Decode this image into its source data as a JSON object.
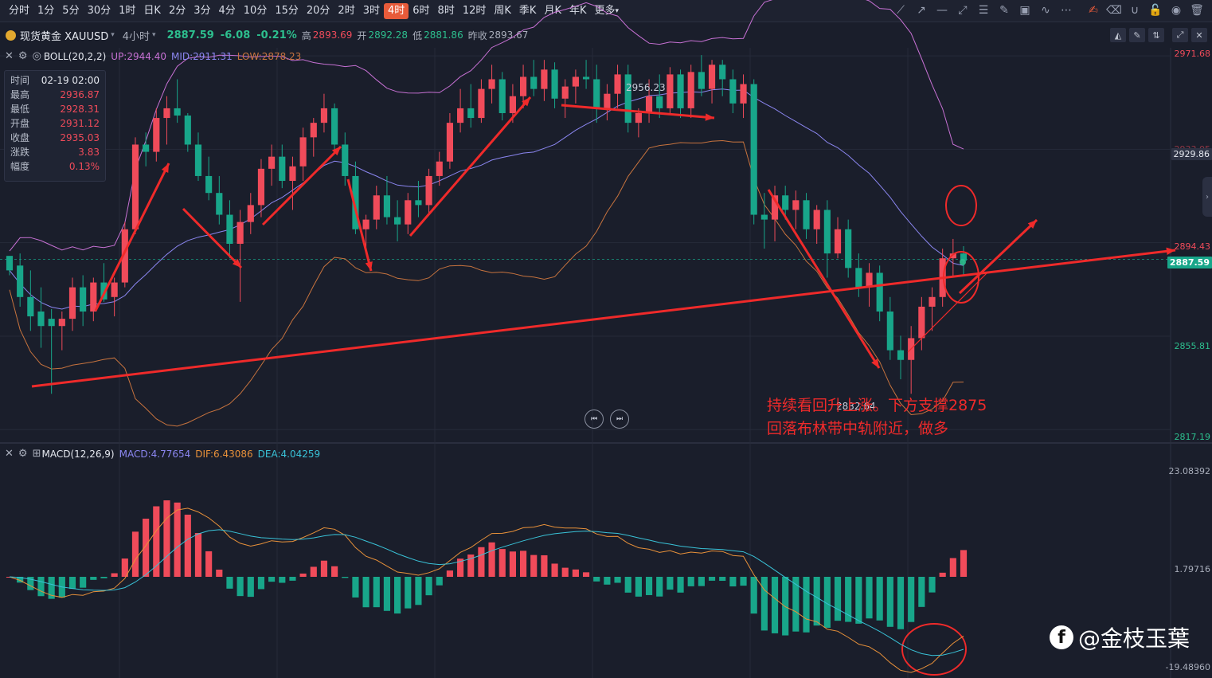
{
  "timeframes": [
    "分时",
    "1分",
    "5分",
    "30分",
    "1时",
    "日K",
    "2分",
    "3分",
    "4分",
    "10分",
    "15分",
    "20分",
    "2时",
    "3时",
    "4时",
    "6时",
    "8时",
    "12时",
    "周K",
    "季K",
    "月K",
    "年K",
    "更多"
  ],
  "active_timeframe": "4时",
  "more_caret": "▾",
  "tools": [
    {
      "name": "line-tool-icon",
      "glyph": "⟋"
    },
    {
      "name": "ray-tool-icon",
      "glyph": "↗"
    },
    {
      "name": "hline-tool-icon",
      "glyph": "—"
    },
    {
      "name": "segment-tool-icon",
      "glyph": "⤢"
    },
    {
      "name": "fib-tool-icon",
      "glyph": "☰"
    },
    {
      "name": "pen-tool-icon",
      "glyph": "✎"
    },
    {
      "name": "image-tool-icon",
      "glyph": "▣"
    },
    {
      "name": "wave-tool-icon",
      "glyph": "∿"
    },
    {
      "name": "more-tools-icon",
      "glyph": "⋯"
    },
    {
      "name": "edit-tool-icon",
      "glyph": "✍",
      "highlight": true
    },
    {
      "name": "eraser-icon",
      "glyph": "⌫"
    },
    {
      "name": "magnet-icon",
      "glyph": "∪"
    },
    {
      "name": "lock-icon",
      "glyph": "🔓"
    },
    {
      "name": "eye-icon",
      "glyph": "◉"
    },
    {
      "name": "trash-icon",
      "glyph": "🗑"
    }
  ],
  "symbol": {
    "name": "现货黄金 XAUUSD",
    "caret": "▾",
    "period": "4小时",
    "price": "2887.59",
    "change": "-6.08",
    "change_pct": "-0.21%",
    "high_label": "高",
    "high": "2893.69",
    "open_label": "开",
    "open": "2892.28",
    "low_label": "低",
    "low": "2881.86",
    "prev_label": "昨收",
    "prev": "2893.67"
  },
  "header_icons": [
    "chart-style-icon",
    "pencil-icon",
    "compare-icon",
    "fullscreen-icon",
    "close-icon"
  ],
  "boll_legend": {
    "name": "BOLL(20,2,2)",
    "up": "UP:2944.40",
    "mid": "MID:2911.31",
    "low": "LOW:2878.23"
  },
  "macd_legend": {
    "name": "MACD(12,26,9)",
    "macd": "MACD:4.77654",
    "dif": "DIF:6.43086",
    "dea": "DEA:4.04259"
  },
  "tooltip": [
    {
      "k": "时间",
      "v": "02-19 02:00",
      "white": true
    },
    {
      "k": "最高",
      "v": "2936.87"
    },
    {
      "k": "最低",
      "v": "2928.31"
    },
    {
      "k": "开盘",
      "v": "2931.12"
    },
    {
      "k": "收盘",
      "v": "2935.03"
    },
    {
      "k": "涨跌",
      "v": "3.83"
    },
    {
      "k": "幅度",
      "v": "0.13%"
    }
  ],
  "price_axis": {
    "labels": [
      {
        "v": "2971.68",
        "color": "#f04b5a"
      },
      {
        "v": "2894.43",
        "color": "#f04b5a"
      },
      {
        "v": "2855.81",
        "color": "#2dbf8e"
      },
      {
        "v": "2817.19",
        "color": "#2dbf8e"
      }
    ],
    "crosshair_tag": "2929.86",
    "last_price_tag": "2887.59",
    "partial_label": "2933.05"
  },
  "macd_axis": {
    "labels": [
      "23.08392",
      "1.79716",
      "-19.48960"
    ]
  },
  "peak_label": "2956.23",
  "trough_label": "2832.64",
  "annotation": {
    "line1": "持续看回升上涨。下方支撑2875",
    "line2": "回落布林带中轨附近，做多"
  },
  "brand": {
    "logo": "f",
    "text": "@金枝玉葉"
  },
  "nav_buttons": [
    "⏮",
    "⏭"
  ],
  "colors": {
    "up": "#f04b5a",
    "down": "#18a68a",
    "boll_up": "#c771d4",
    "boll_mid": "#8b86f0",
    "boll_low": "#c7733e",
    "dif": "#e8913a",
    "dea": "#39c2d7",
    "arrow": "#ef2a2a"
  },
  "chart_data": {
    "type": "candlestick",
    "series_name": "XAUUSD 4H",
    "ylim": [
      2812,
      2975
    ],
    "candles": [
      [
        2889,
        2888,
        2881,
        2883
      ],
      [
        2885,
        2890,
        2868,
        2872
      ],
      [
        2872,
        2883,
        2858,
        2864
      ],
      [
        2866,
        2876,
        2851,
        2860
      ],
      [
        2863,
        2867,
        2832,
        2860
      ],
      [
        2860,
        2866,
        2850,
        2863
      ],
      [
        2863,
        2880,
        2858,
        2876
      ],
      [
        2876,
        2881,
        2860,
        2866
      ],
      [
        2866,
        2880,
        2862,
        2878
      ],
      [
        2878,
        2886,
        2870,
        2871
      ],
      [
        2872,
        2880,
        2864,
        2878
      ],
      [
        2878,
        2903,
        2876,
        2900
      ],
      [
        2900,
        2938,
        2898,
        2935
      ],
      [
        2935,
        2940,
        2926,
        2932
      ],
      [
        2932,
        2950,
        2928,
        2946
      ],
      [
        2946,
        2955,
        2935,
        2950
      ],
      [
        2950,
        2962,
        2944,
        2947
      ],
      [
        2947,
        2948,
        2932,
        2935
      ],
      [
        2935,
        2940,
        2920,
        2922
      ],
      [
        2922,
        2930,
        2912,
        2915
      ],
      [
        2915,
        2922,
        2902,
        2906
      ],
      [
        2906,
        2912,
        2888,
        2894
      ],
      [
        2894,
        2908,
        2870,
        2903
      ],
      [
        2903,
        2915,
        2898,
        2910
      ],
      [
        2910,
        2929,
        2905,
        2925
      ],
      [
        2925,
        2935,
        2918,
        2930
      ],
      [
        2930,
        2935,
        2917,
        2920
      ],
      [
        2920,
        2930,
        2908,
        2926
      ],
      [
        2926,
        2942,
        2920,
        2938
      ],
      [
        2938,
        2946,
        2930,
        2944
      ],
      [
        2944,
        2956,
        2940,
        2950
      ],
      [
        2950,
        2952,
        2932,
        2935
      ],
      [
        2935,
        2940,
        2918,
        2922
      ],
      [
        2922,
        2928,
        2898,
        2900
      ],
      [
        2900,
        2906,
        2892,
        2904
      ],
      [
        2904,
        2918,
        2900,
        2914
      ],
      [
        2914,
        2922,
        2902,
        2905
      ],
      [
        2905,
        2912,
        2895,
        2902
      ],
      [
        2902,
        2915,
        2898,
        2912
      ],
      [
        2912,
        2920,
        2905,
        2910
      ],
      [
        2910,
        2925,
        2906,
        2922
      ],
      [
        2922,
        2932,
        2918,
        2928
      ],
      [
        2928,
        2948,
        2925,
        2944
      ],
      [
        2944,
        2958,
        2940,
        2950
      ],
      [
        2950,
        2960,
        2942,
        2946
      ],
      [
        2946,
        2962,
        2944,
        2958
      ],
      [
        2958,
        2968,
        2952,
        2962
      ],
      [
        2962,
        2965,
        2945,
        2948
      ],
      [
        2948,
        2960,
        2944,
        2955
      ],
      [
        2955,
        2968,
        2950,
        2963
      ],
      [
        2963,
        2970,
        2955,
        2958
      ],
      [
        2958,
        2970,
        2953,
        2966
      ],
      [
        2966,
        2969,
        2950,
        2954
      ],
      [
        2954,
        2962,
        2946,
        2959
      ],
      [
        2959,
        2966,
        2952,
        2963
      ],
      [
        2963,
        2970,
        2958,
        2962
      ],
      [
        2962,
        2968,
        2944,
        2950
      ],
      [
        2950,
        2960,
        2945,
        2956
      ],
      [
        2956,
        2968,
        2950,
        2964
      ],
      [
        2964,
        2968,
        2940,
        2944
      ],
      [
        2944,
        2950,
        2938,
        2948
      ],
      [
        2948,
        2962,
        2944,
        2955
      ],
      [
        2955,
        2964,
        2946,
        2950
      ],
      [
        2950,
        2967,
        2948,
        2964
      ],
      [
        2964,
        2966,
        2946,
        2950
      ],
      [
        2950,
        2968,
        2946,
        2965
      ],
      [
        2965,
        2972,
        2955,
        2958
      ],
      [
        2958,
        2970,
        2952,
        2968
      ],
      [
        2968,
        2970,
        2955,
        2962
      ],
      [
        2962,
        2966,
        2948,
        2952
      ],
      [
        2952,
        2964,
        2946,
        2960
      ],
      [
        2960,
        2962,
        2902,
        2906
      ],
      [
        2906,
        2915,
        2892,
        2904
      ],
      [
        2904,
        2918,
        2895,
        2914
      ],
      [
        2914,
        2918,
        2904,
        2908
      ],
      [
        2908,
        2916,
        2900,
        2912
      ],
      [
        2912,
        2915,
        2896,
        2900
      ],
      [
        2900,
        2910,
        2894,
        2908
      ],
      [
        2908,
        2912,
        2880,
        2890
      ],
      [
        2890,
        2905,
        2888,
        2900
      ],
      [
        2900,
        2904,
        2880,
        2884
      ],
      [
        2884,
        2890,
        2872,
        2876
      ],
      [
        2876,
        2886,
        2868,
        2882
      ],
      [
        2882,
        2885,
        2862,
        2866
      ],
      [
        2866,
        2872,
        2846,
        2850
      ],
      [
        2850,
        2856,
        2838,
        2846
      ],
      [
        2846,
        2860,
        2832,
        2855
      ],
      [
        2855,
        2872,
        2850,
        2868
      ],
      [
        2868,
        2876,
        2858,
        2872
      ],
      [
        2872,
        2892,
        2868,
        2888
      ],
      [
        2888,
        2896,
        2880,
        2890
      ],
      [
        2890,
        2893,
        2881,
        2887
      ]
    ]
  }
}
